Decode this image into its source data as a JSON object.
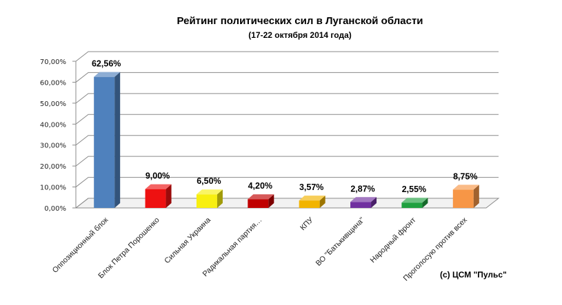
{
  "chart_data": {
    "type": "bar",
    "title": "Рейтинг политических сил в Луганской области",
    "subtitle": "(17-22 октября 2014 года)",
    "categories": [
      "Оппозиционный блок",
      "Блок Петра Порошенко",
      "Сильная Украина",
      "Радикальная партия…",
      "КПУ",
      "ВО \"Батькивщина\"",
      "Народный фронт",
      "Проголосую против всех"
    ],
    "values": [
      62.56,
      9.0,
      6.5,
      4.2,
      3.57,
      2.87,
      2.55,
      8.75
    ],
    "data_labels": [
      "62,56%",
      "9,00%",
      "6,50%",
      "4,20%",
      "3,57%",
      "2,87%",
      "2,55%",
      "8,75%"
    ],
    "colors": [
      "#4f81bd",
      "#ee1111",
      "#f8ef10",
      "#c00000",
      "#f2b400",
      "#7030a0",
      "#20a040",
      "#f79646"
    ],
    "ylim": [
      0,
      70
    ],
    "yticks": [
      "0,00%",
      "10,00%",
      "20,00%",
      "30,00%",
      "40,00%",
      "50,00%",
      "60,00%",
      "70,00%"
    ],
    "grid": true,
    "legend": "none",
    "credit": "(с) ЦСМ \"Пульс\""
  }
}
